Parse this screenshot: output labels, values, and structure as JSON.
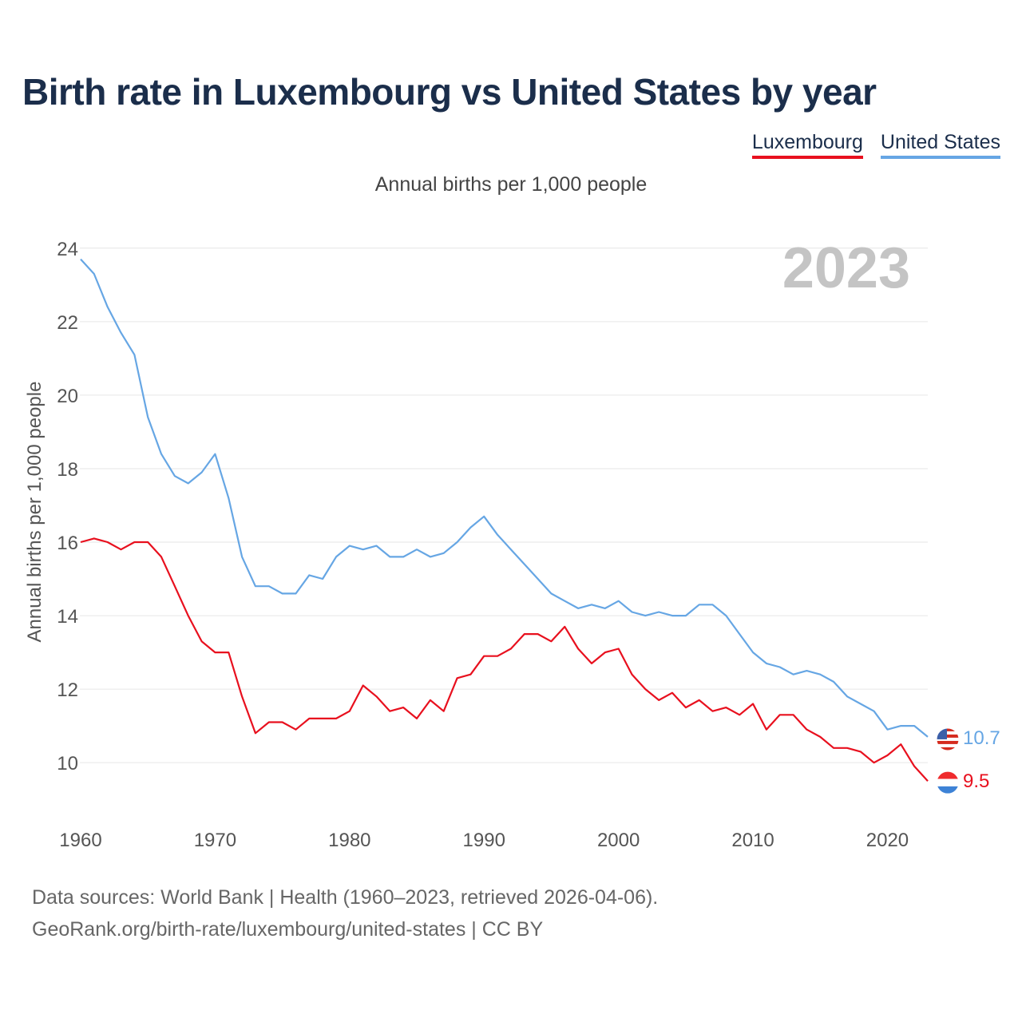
{
  "title": "Birth rate in Luxembourg vs United States by year",
  "subtitle": "Annual births per 1,000 people",
  "legend": [
    {
      "name": "Luxembourg",
      "color": "#e8101e"
    },
    {
      "name": "United States",
      "color": "#66a6e4"
    }
  ],
  "footer": {
    "line1": "Data sources: World Bank | Health (1960–2023, retrieved 2026-04-06).",
    "line2": "GeoRank.org/birth-rate/luxembourg/united-states | CC BY"
  },
  "chart_data": {
    "type": "line",
    "title": "Birth rate in Luxembourg vs United States by year",
    "ylabel": "Annual births per 1,000 people",
    "xlabel": "",
    "year_label": "2023",
    "xlim": [
      1960,
      2023
    ],
    "ylim": [
      8.7,
      24.3
    ],
    "x_ticks": [
      "1960",
      "1970",
      "1980",
      "1990",
      "2000",
      "2010",
      "2020"
    ],
    "y_ticks": [
      "10",
      "12",
      "14",
      "16",
      "18",
      "20",
      "22",
      "24"
    ],
    "grid": true,
    "legend_position": "top-right",
    "x": [
      1960,
      1961,
      1962,
      1963,
      1964,
      1965,
      1966,
      1967,
      1968,
      1969,
      1970,
      1971,
      1972,
      1973,
      1974,
      1975,
      1976,
      1977,
      1978,
      1979,
      1980,
      1981,
      1982,
      1983,
      1984,
      1985,
      1986,
      1987,
      1988,
      1989,
      1990,
      1991,
      1992,
      1993,
      1994,
      1995,
      1996,
      1997,
      1998,
      1999,
      2000,
      2001,
      2002,
      2003,
      2004,
      2005,
      2006,
      2007,
      2008,
      2009,
      2010,
      2011,
      2012,
      2013,
      2014,
      2015,
      2016,
      2017,
      2018,
      2019,
      2020,
      2021,
      2022,
      2023
    ],
    "series": [
      {
        "name": "Luxembourg",
        "color": "#e8101e",
        "end_label": "9.5",
        "values": [
          16.0,
          16.1,
          16.0,
          15.8,
          16.0,
          16.0,
          15.6,
          14.8,
          14.0,
          13.3,
          13.0,
          13.0,
          11.8,
          10.8,
          11.1,
          11.1,
          10.9,
          11.2,
          11.2,
          11.2,
          11.4,
          12.1,
          11.8,
          11.4,
          11.5,
          11.2,
          11.7,
          11.4,
          12.3,
          12.4,
          12.9,
          12.9,
          13.1,
          13.5,
          13.5,
          13.3,
          13.7,
          13.1,
          12.7,
          13.0,
          13.1,
          12.4,
          12.0,
          11.7,
          11.9,
          11.5,
          11.7,
          11.4,
          11.5,
          11.3,
          11.6,
          10.9,
          11.3,
          11.3,
          10.9,
          10.7,
          10.4,
          10.4,
          10.3,
          10.0,
          10.2,
          10.5,
          9.9,
          9.5
        ]
      },
      {
        "name": "United States",
        "color": "#66a6e4",
        "end_label": "10.7",
        "values": [
          23.7,
          23.3,
          22.4,
          21.7,
          21.1,
          19.4,
          18.4,
          17.8,
          17.6,
          17.9,
          18.4,
          17.2,
          15.6,
          14.8,
          14.8,
          14.6,
          14.6,
          15.1,
          15.0,
          15.6,
          15.9,
          15.8,
          15.9,
          15.6,
          15.6,
          15.8,
          15.6,
          15.7,
          16.0,
          16.4,
          16.7,
          16.2,
          15.8,
          15.4,
          15.0,
          14.6,
          14.4,
          14.2,
          14.3,
          14.2,
          14.4,
          14.1,
          14.0,
          14.1,
          14.0,
          14.0,
          14.3,
          14.3,
          14.0,
          13.5,
          13.0,
          12.7,
          12.6,
          12.4,
          12.5,
          12.4,
          12.2,
          11.8,
          11.6,
          11.4,
          10.9,
          11.0,
          11.0,
          10.7
        ]
      }
    ]
  }
}
